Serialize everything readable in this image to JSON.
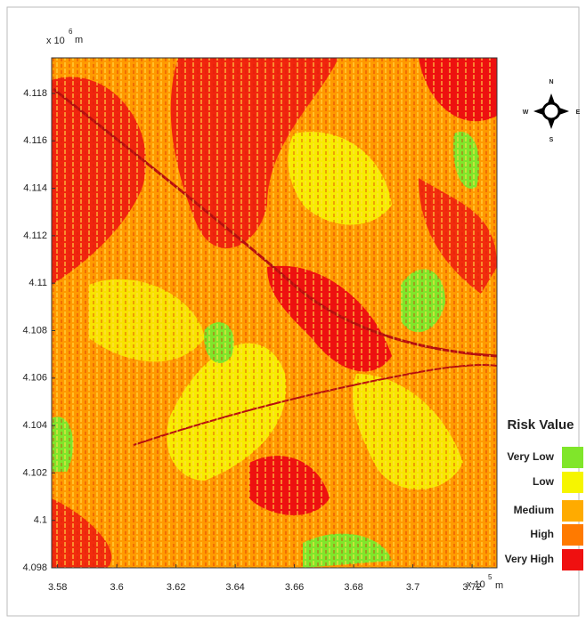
{
  "map": {
    "y_multiplier": "x 10",
    "y_exponent": "6",
    "y_unit": "m",
    "x_multiplier": "x 10",
    "x_exponent": "5",
    "x_unit": "m",
    "xlim": [
      3.578,
      3.7284
    ],
    "xticks": [
      3.58,
      3.6,
      3.62,
      3.64,
      3.66,
      3.68,
      3.7,
      3.72
    ],
    "ylim": [
      4.098,
      4.1195
    ],
    "yticks": [
      4.098,
      4.1,
      4.102,
      4.104,
      4.106,
      4.108,
      4.11,
      4.112,
      4.114,
      4.116,
      4.118
    ],
    "compass": {
      "north": "N",
      "east": "E",
      "south": "S",
      "west": "W"
    },
    "legend": {
      "title": "Risk Value",
      "classes": [
        {
          "name": "Very Low",
          "color": "#80e62a"
        },
        {
          "name": "Low",
          "color": "#f6f500"
        },
        {
          "name": "Medium",
          "color": "#ffab00"
        },
        {
          "name": "High",
          "color": "#ff7a00"
        },
        {
          "name": "Very High",
          "color": "#ef1010"
        }
      ]
    }
  }
}
